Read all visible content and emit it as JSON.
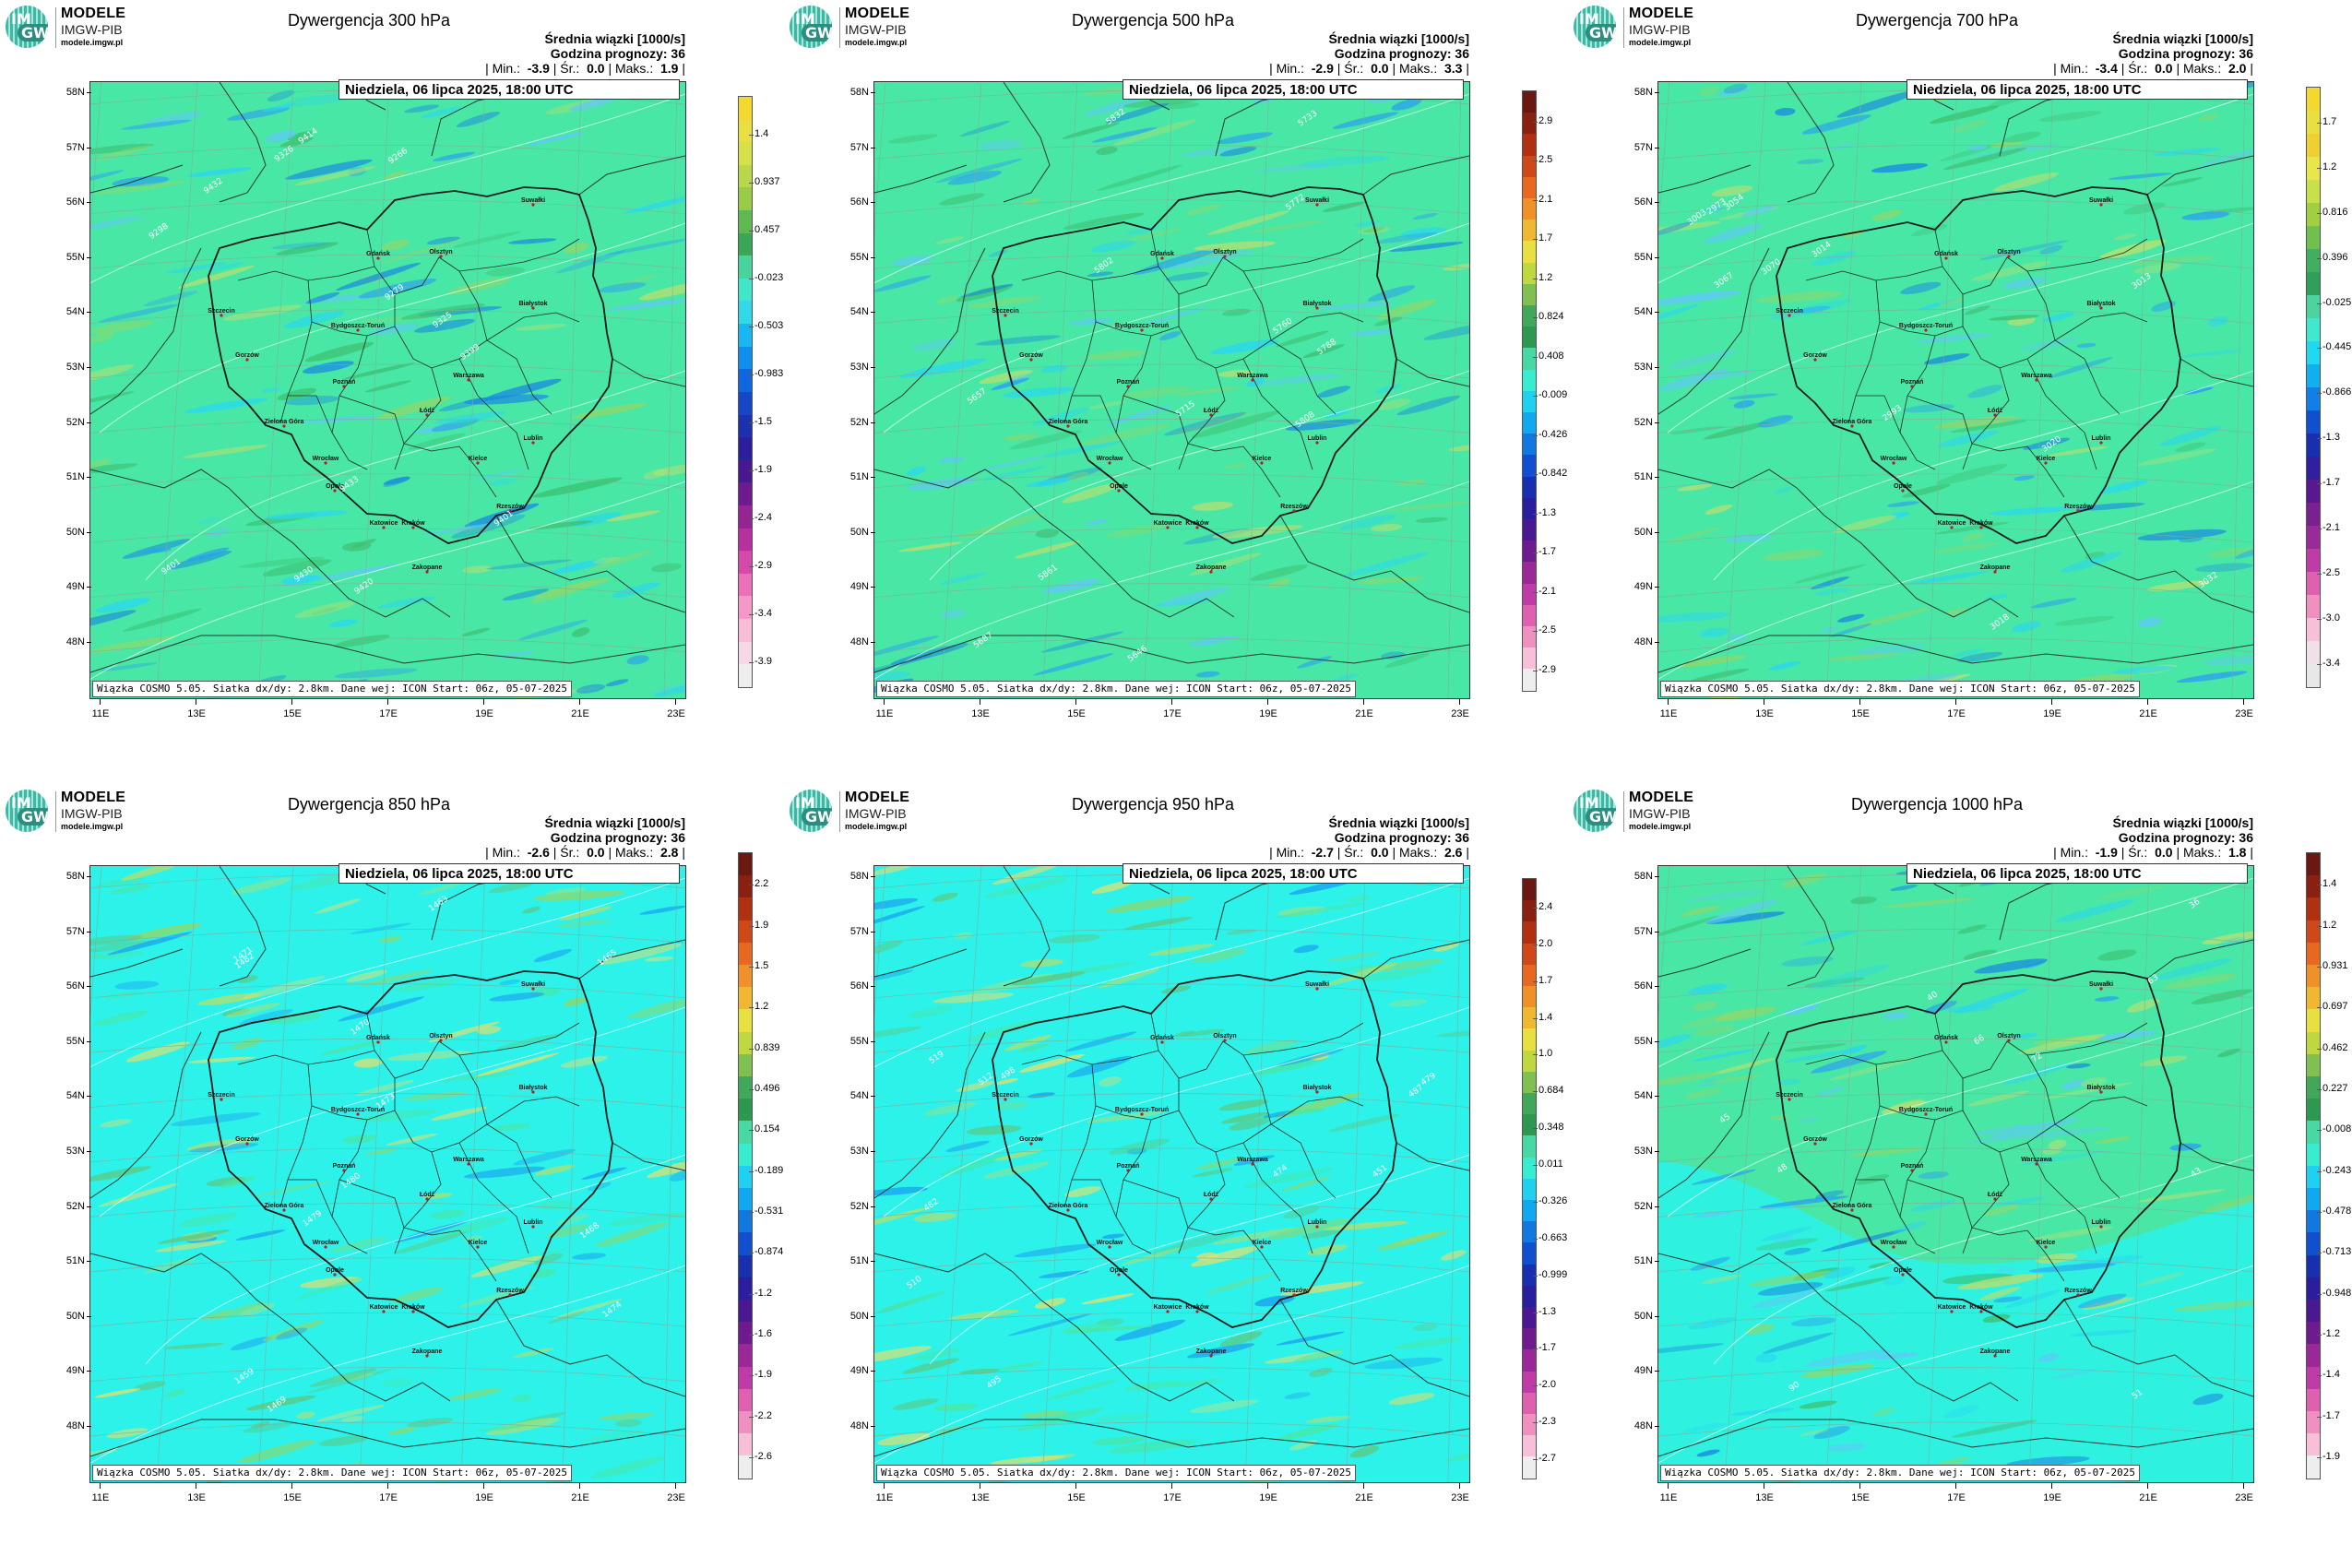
{
  "logo": {
    "line1": "MODELE",
    "line2": "IMGW-PIB",
    "line3": "modele.imgw.pl",
    "circle_top": "IM",
    "circle_bottom": "GW"
  },
  "common": {
    "header_line1": "Średnia wiązki [1000/s]",
    "header_line2": "Godzina prognozy: 36",
    "date": "Niedziela, 06 lipca 2025, 18:00 UTC",
    "footer": "Wiązka COSMO 5.05. Siatka dx/dy: 2.8km. Dane wej: ICON Start: 06z, 05-07-2025",
    "lat_labels": [
      "58N",
      "57N",
      "56N",
      "55N",
      "54N",
      "53N",
      "52N",
      "51N",
      "50N",
      "49N",
      "48N"
    ],
    "lon_labels": [
      "11E",
      "13E",
      "15E",
      "17E",
      "19E",
      "21E",
      "23E"
    ],
    "cities": [
      "Gdańsk",
      "Olsztyn",
      "Szczecin",
      "Białystok",
      "Bydgoszcz-Toruń",
      "Gorzów",
      "Poznań",
      "Warszawa",
      "Łódź",
      "Zielona Góra",
      "Lublin",
      "Wrocław",
      "Kielce",
      "Opole",
      "Rzeszów",
      "Katowice",
      "Kraków",
      "Zakopane",
      "Suwałki"
    ],
    "colors": {
      "field_green": "#48e7a6",
      "field_cyan": "#2cf2ea",
      "border": "#1a1a1a",
      "contour": "#e6fff6"
    }
  },
  "panels": [
    {
      "title": "Dywergencja 300 hPa",
      "min": "-3.9",
      "mean": "0.0",
      "max": "1.9",
      "field": "green",
      "contours": [
        "9420",
        "9401",
        "9298",
        "9279",
        "9266",
        "9325",
        "9414",
        "9399",
        "9326",
        "9432",
        "9430",
        "9401",
        "9433"
      ],
      "cbar_labels": [
        "1.4",
        "0.937",
        "0.457",
        "-0.023",
        "-0.503",
        "-0.983",
        "-1.5",
        "-1.9",
        "-2.4",
        "-2.9",
        "-3.4",
        "-3.9"
      ]
    },
    {
      "title": "Dywergencja 500 hPa",
      "min": "-2.9",
      "mean": "0.0",
      "max": "3.3",
      "field": "green",
      "contours": [
        "5802",
        "5687",
        "5657",
        "5646",
        "5808",
        "5733",
        "5715",
        "5772",
        "5832",
        "5861",
        "5760",
        "5788"
      ],
      "cbar_labels": [
        "2.9",
        "2.5",
        "2.1",
        "1.7",
        "1.2",
        "0.824",
        "0.408",
        "-0.009",
        "-0.426",
        "-0.842",
        "-1.3",
        "-1.7",
        "-2.1",
        "-2.5",
        "-2.9"
      ]
    },
    {
      "title": "Dywergencja 700 hPa",
      "min": "-3.4",
      "mean": "0.0",
      "max": "2.0",
      "field": "green",
      "contours": [
        "3013",
        "2993",
        "3003",
        "3032",
        "3014",
        "2973",
        "3018",
        "3020",
        "3070",
        "3067",
        "3054"
      ],
      "cbar_labels": [
        "1.7",
        "1.2",
        "0.816",
        "0.396",
        "-0.025",
        "-0.445",
        "-0.866",
        "-1.3",
        "-1.7",
        "-2.1",
        "-2.5",
        "-3.0",
        "-3.4"
      ]
    },
    {
      "title": "Dywergencja 850 hPa",
      "min": "-2.6",
      "mean": "0.0",
      "max": "2.8",
      "field": "cyan",
      "contours": [
        "1471",
        "1468",
        "1474",
        "1479",
        "1473",
        "1480",
        "1463",
        "1470",
        "1469",
        "1482",
        "1465",
        "1459"
      ],
      "cbar_labels": [
        "2.2",
        "1.9",
        "1.5",
        "1.2",
        "0.839",
        "0.496",
        "0.154",
        "-0.189",
        "-0.531",
        "-0.874",
        "-1.2",
        "-1.6",
        "-1.9",
        "-2.2",
        "-2.6"
      ]
    },
    {
      "title": "Dywergencja 950 hPa",
      "min": "-2.7",
      "mean": "0.0",
      "max": "2.6",
      "field": "cyan",
      "contours": [
        "487",
        "474",
        "479",
        "495",
        "512",
        "482",
        "451",
        "519",
        "510",
        "498"
      ],
      "cbar_labels": [
        "2.4",
        "2.0",
        "1.7",
        "1.4",
        "1.0",
        "0.684",
        "0.348",
        "0.011",
        "-0.326",
        "-0.663",
        "-0.999",
        "-1.3",
        "-1.7",
        "-2.0",
        "-2.3",
        "-2.7"
      ]
    },
    {
      "title": "Dywergencja 1000 hPa",
      "min": "-1.9",
      "mean": "0.0",
      "max": "1.8",
      "field": "mixed",
      "contours": [
        "36",
        "40",
        "43",
        "45",
        "51",
        "66",
        "72",
        "90",
        "63",
        "48"
      ],
      "cbar_labels": [
        "1.4",
        "1.2",
        "0.931",
        "0.697",
        "0.462",
        "0.227",
        "-0.008",
        "-0.243",
        "-0.478",
        "-0.713",
        "-0.948",
        "-1.2",
        "-1.4",
        "-1.7",
        "-1.9"
      ]
    }
  ]
}
